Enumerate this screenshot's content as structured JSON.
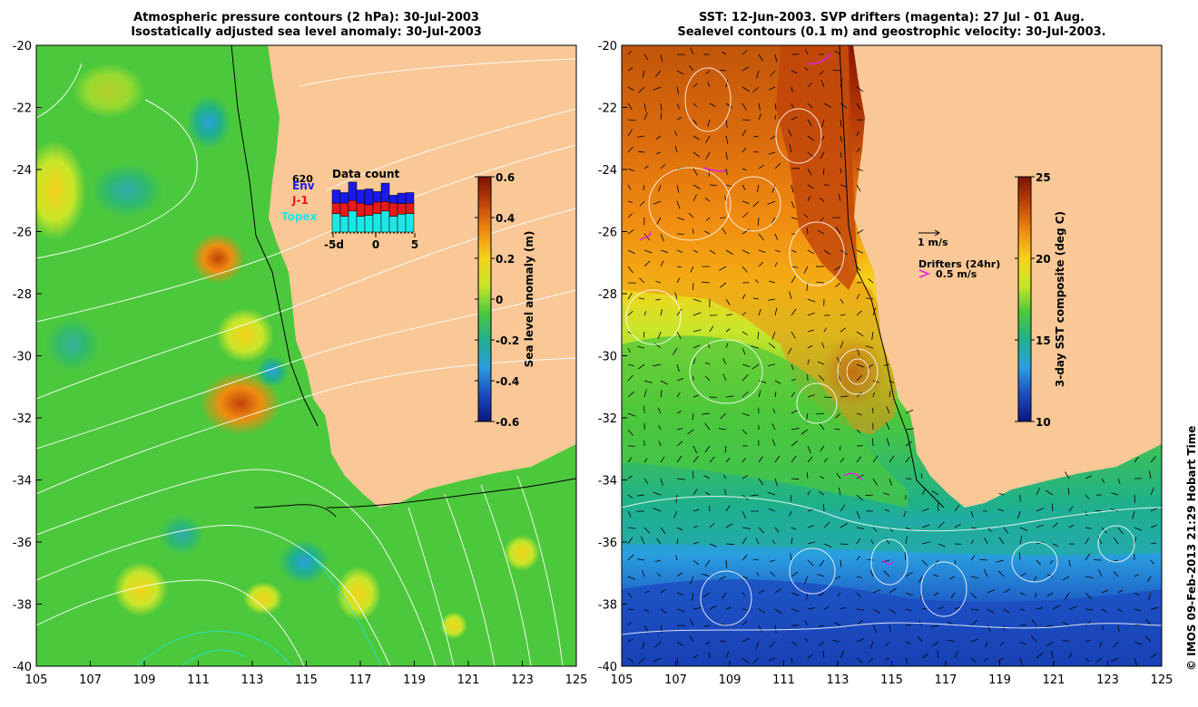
{
  "left_panel": {
    "title_line1": "Atmospheric pressure contours (2 hPa): 30-Jul-2003",
    "title_line2": "Isostatically adjusted sea level anomaly: 30-Jul-2003",
    "y_ticks": [
      "-20",
      "-22",
      "-24",
      "-26",
      "-28",
      "-30",
      "-32",
      "-34",
      "-36",
      "-38",
      "-40"
    ],
    "x_ticks": [
      "105",
      "107",
      "109",
      "111",
      "113",
      "115",
      "117",
      "119",
      "121",
      "123",
      "125"
    ],
    "colorbar": {
      "label": "Sea level anomaly (m)",
      "ticks": [
        "0.6",
        "0.4",
        "0.2",
        "0",
        "-0.2",
        "-0.4",
        "-0.6"
      ],
      "colors": [
        "#7a1200",
        "#c0440a",
        "#f08c10",
        "#f7d21a",
        "#c8e62a",
        "#4cc83c",
        "#1fb08c",
        "#2a9fe0",
        "#1b4cc0",
        "#0a1680"
      ]
    },
    "data_count": {
      "title": "Data count",
      "max_label": "620",
      "legend": [
        {
          "name": "Env",
          "color": "#1a1ae6"
        },
        {
          "name": "J-1",
          "color": "#e61a1a"
        },
        {
          "name": "Topex",
          "color": "#1ee6e6"
        }
      ],
      "x_labels": [
        "-5d",
        "0",
        "5"
      ],
      "bars": {
        "topex": [
          0.35,
          0.3,
          0.4,
          0.3,
          0.32,
          0.35,
          0.4,
          0.3,
          0.34,
          0.35
        ],
        "j1": [
          0.2,
          0.25,
          0.2,
          0.25,
          0.2,
          0.22,
          0.18,
          0.25,
          0.2,
          0.2
        ],
        "env": [
          0.25,
          0.2,
          0.35,
          0.25,
          0.3,
          0.2,
          0.35,
          0.15,
          0.2,
          0.2
        ]
      }
    }
  },
  "right_panel": {
    "title_line1": "SST: 12-Jun-2003. SVP drifters (magenta): 27 Jul - 01 Aug.",
    "title_line2": "Sealevel contours (0.1 m) and geostrophic velocity: 30-Jul-2003.",
    "y_ticks": [
      "-20",
      "-22",
      "-24",
      "-26",
      "-28",
      "-30",
      "-32",
      "-34",
      "-36",
      "-38",
      "-40"
    ],
    "x_ticks": [
      "105",
      "107",
      "109",
      "111",
      "113",
      "115",
      "117",
      "119",
      "121",
      "123",
      "125"
    ],
    "colorbar": {
      "label": "3-day SST composite (deg C)",
      "ticks": [
        "25",
        "20",
        "15",
        "10"
      ],
      "colors": [
        "#7a1200",
        "#c0440a",
        "#f08c10",
        "#f7d21a",
        "#c8e62a",
        "#4cc83c",
        "#1fb08c",
        "#2a9fe0",
        "#1b4cc0",
        "#0a1680"
      ]
    },
    "scale_label": "1 m/s",
    "drifters_label": "Drifters (24hr)",
    "drifters_speed": "0.5 m/s"
  },
  "land_color": "#f9c896",
  "credit": "© IMOS 09-Feb-2013 21:29 Hobart Time"
}
